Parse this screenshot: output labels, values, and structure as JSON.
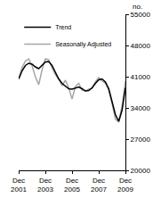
{
  "chart_data": {
    "type": "line",
    "ylabel": "no.",
    "categories": [
      "Dec 2001",
      null,
      null,
      null,
      null,
      null,
      null,
      null,
      "Dec 2003",
      null,
      null,
      null,
      null,
      null,
      null,
      null,
      "Dec 2005",
      null,
      null,
      null,
      null,
      null,
      null,
      null,
      "Dec 2007",
      null,
      null,
      null,
      null,
      null,
      null,
      null,
      "Dec 2009"
    ],
    "series": [
      {
        "name": "Trend",
        "color": "#000000",
        "values": [
          40500,
          42300,
          43500,
          44000,
          43800,
          43200,
          42800,
          43500,
          44300,
          44400,
          43500,
          42000,
          40500,
          39500,
          38800,
          38300,
          38200,
          38500,
          38700,
          38300,
          37800,
          37900,
          38500,
          39500,
          40300,
          40500,
          39800,
          38300,
          35500,
          32500,
          31000,
          33500,
          38500
        ]
      },
      {
        "name": "Seasonally Adjusted",
        "color": "#a6a6a6",
        "values": [
          40500,
          43000,
          44500,
          45000,
          43500,
          41000,
          39200,
          42500,
          45000,
          44800,
          43000,
          41500,
          40500,
          39000,
          40200,
          38500,
          36000,
          38800,
          39500,
          38000,
          37800,
          38200,
          38400,
          39800,
          40800,
          40000,
          39500,
          38000,
          35000,
          31500,
          30800,
          34500,
          40000
        ]
      }
    ],
    "ylim": [
      20000,
      55000
    ],
    "yticks": [
      20000,
      27000,
      34000,
      41000,
      48000,
      55000
    ],
    "grid": false,
    "legend": "upper left"
  }
}
